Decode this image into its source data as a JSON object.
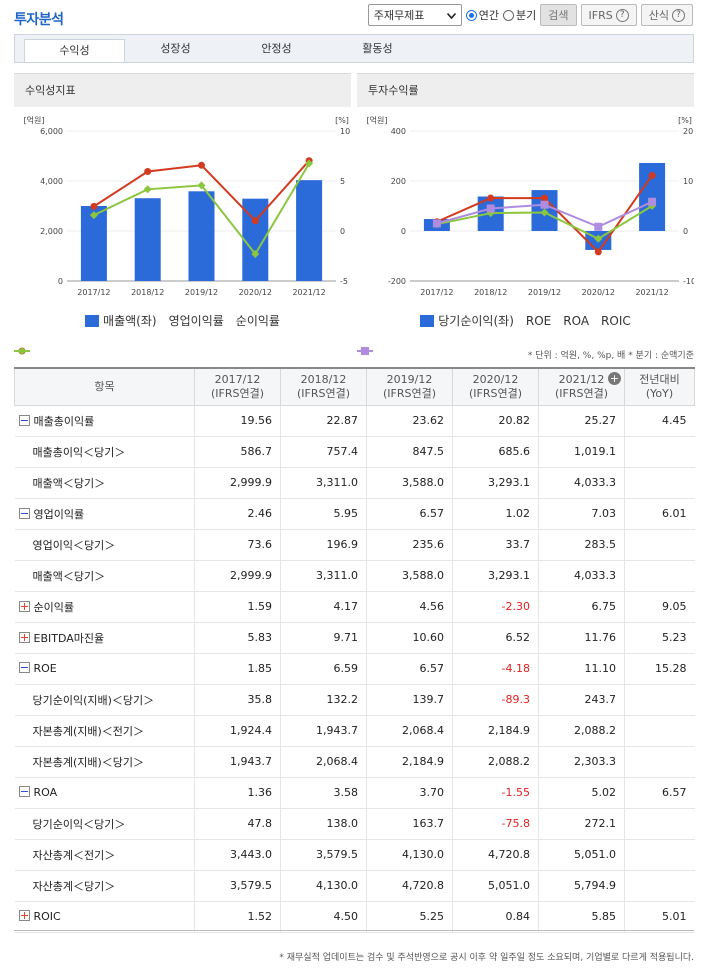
{
  "header": {
    "title": "투자분석",
    "select_value": "주재무제표",
    "radio_annual": "연간",
    "radio_quarter": "분기",
    "search_label": "검색",
    "ifrs_label": "IFRS",
    "formula_label": "산식",
    "help_glyph": "?"
  },
  "tabs": [
    {
      "label": "수익성"
    },
    {
      "label": "성장성"
    },
    {
      "label": "안정성"
    },
    {
      "label": "활동성"
    }
  ],
  "charts": {
    "left_title": "수익성지표",
    "right_title": "투자수익률"
  },
  "chart_data": [
    {
      "type": "bar+line",
      "title": "수익성지표",
      "categories": [
        "2017/12",
        "2018/12",
        "2019/12",
        "2020/12",
        "2021/12"
      ],
      "left_unit": "[억원]",
      "right_unit": "[%]",
      "left_ticks": [
        "6,000",
        "4,000",
        "2,000",
        "0"
      ],
      "right_ticks": [
        "10",
        "5",
        "0",
        "-5"
      ],
      "left_ylim": [
        0,
        6000
      ],
      "right_ylim": [
        -5,
        10
      ],
      "series": [
        {
          "name": "매출액(좌)",
          "kind": "bar",
          "axis": "left",
          "color": "#2a6ad9",
          "values": [
            2999.9,
            3311.0,
            3588.0,
            3293.1,
            4033.3
          ]
        },
        {
          "name": "영업이익률",
          "kind": "line",
          "axis": "right",
          "color": "#d33a1f",
          "values": [
            2.46,
            5.95,
            6.57,
            1.02,
            7.03
          ]
        },
        {
          "name": "순이익률",
          "kind": "line",
          "axis": "right",
          "color": "#8cc63f",
          "values": [
            1.59,
            4.17,
            4.56,
            -2.3,
            6.75
          ]
        }
      ]
    },
    {
      "type": "bar+line",
      "title": "투자수익률",
      "categories": [
        "2017/12",
        "2018/12",
        "2019/12",
        "2020/12",
        "2021/12"
      ],
      "left_unit": "[억원]",
      "right_unit": "[%]",
      "left_ticks": [
        "400",
        "200",
        "0",
        "-200"
      ],
      "right_ticks": [
        "20",
        "10",
        "0",
        "-10"
      ],
      "left_ylim": [
        -200,
        400
      ],
      "right_ylim": [
        -10,
        20
      ],
      "series": [
        {
          "name": "당기순이익(좌)",
          "kind": "bar",
          "axis": "left",
          "color": "#2a6ad9",
          "values": [
            47.8,
            138.0,
            163.7,
            -75.8,
            272.1
          ]
        },
        {
          "name": "ROE",
          "kind": "line",
          "axis": "right",
          "color": "#d33a1f",
          "values": [
            1.85,
            6.59,
            6.57,
            -4.18,
            11.1
          ]
        },
        {
          "name": "ROA",
          "kind": "line",
          "axis": "right",
          "color": "#8cc63f",
          "values": [
            1.36,
            3.58,
            3.7,
            -1.55,
            5.02
          ]
        },
        {
          "name": "ROIC",
          "kind": "line",
          "axis": "right",
          "color": "#b08ce0",
          "values": [
            1.52,
            4.5,
            5.25,
            0.84,
            5.85
          ]
        }
      ]
    }
  ],
  "units_note": "* 단위 : 억원, %, %p, 배   * 분기 : 순액기준",
  "table": {
    "header": {
      "item": "항목",
      "cols": [
        {
          "year": "2017/12",
          "basis": "(IFRS연결)"
        },
        {
          "year": "2018/12",
          "basis": "(IFRS연결)"
        },
        {
          "year": "2019/12",
          "basis": "(IFRS연결)"
        },
        {
          "year": "2020/12",
          "basis": "(IFRS연결)"
        },
        {
          "year": "2021/12",
          "basis": "(IFRS연결)"
        }
      ],
      "yoy": "전년대비",
      "yoy2": "(YoY)",
      "plus_glyph": "+"
    },
    "rows": [
      {
        "label": "매출총이익률",
        "kind": "main",
        "toggle": "minus",
        "values": [
          "19.56",
          "22.87",
          "23.62",
          "20.82",
          "25.27"
        ],
        "yoy": "4.45"
      },
      {
        "label": "매출총이익＜당기＞",
        "kind": "sub",
        "values": [
          "586.7",
          "757.4",
          "847.5",
          "685.6",
          "1,019.1"
        ],
        "yoy": ""
      },
      {
        "label": "매출액＜당기＞",
        "kind": "sub",
        "values": [
          "2,999.9",
          "3,311.0",
          "3,588.0",
          "3,293.1",
          "4,033.3"
        ],
        "yoy": ""
      },
      {
        "label": "영업이익률",
        "kind": "main",
        "toggle": "minus",
        "values": [
          "2.46",
          "5.95",
          "6.57",
          "1.02",
          "7.03"
        ],
        "yoy": "6.01"
      },
      {
        "label": "영업이익＜당기＞",
        "kind": "sub",
        "values": [
          "73.6",
          "196.9",
          "235.6",
          "33.7",
          "283.5"
        ],
        "yoy": ""
      },
      {
        "label": "매출액＜당기＞",
        "kind": "sub",
        "values": [
          "2,999.9",
          "3,311.0",
          "3,588.0",
          "3,293.1",
          "4,033.3"
        ],
        "yoy": ""
      },
      {
        "label": "순이익률",
        "kind": "main",
        "toggle": "plus",
        "values": [
          "1.59",
          "4.17",
          "4.56",
          "-2.30",
          "6.75"
        ],
        "yoy": "9.05"
      },
      {
        "label": "EBITDA마진율",
        "kind": "main",
        "toggle": "plus",
        "values": [
          "5.83",
          "9.71",
          "10.60",
          "6.52",
          "11.76"
        ],
        "yoy": "5.23"
      },
      {
        "label": "ROE",
        "kind": "main",
        "toggle": "minus",
        "values": [
          "1.85",
          "6.59",
          "6.57",
          "-4.18",
          "11.10"
        ],
        "yoy": "15.28"
      },
      {
        "label": "당기순이익(지배)＜당기＞",
        "kind": "sub",
        "values": [
          "35.8",
          "132.2",
          "139.7",
          "-89.3",
          "243.7"
        ],
        "yoy": ""
      },
      {
        "label": "자본총계(지배)＜전기＞",
        "kind": "sub",
        "values": [
          "1,924.4",
          "1,943.7",
          "2,068.4",
          "2,184.9",
          "2,088.2"
        ],
        "yoy": ""
      },
      {
        "label": "자본총계(지배)＜당기＞",
        "kind": "sub",
        "values": [
          "1,943.7",
          "2,068.4",
          "2,184.9",
          "2,088.2",
          "2,303.3"
        ],
        "yoy": ""
      },
      {
        "label": "ROA",
        "kind": "main",
        "toggle": "minus",
        "values": [
          "1.36",
          "3.58",
          "3.70",
          "-1.55",
          "5.02"
        ],
        "yoy": "6.57"
      },
      {
        "label": "당기순이익＜당기＞",
        "kind": "sub",
        "values": [
          "47.8",
          "138.0",
          "163.7",
          "-75.8",
          "272.1"
        ],
        "yoy": ""
      },
      {
        "label": "자산총계＜전기＞",
        "kind": "sub",
        "values": [
          "3,443.0",
          "3,579.5",
          "4,130.0",
          "4,720.8",
          "5,051.0"
        ],
        "yoy": ""
      },
      {
        "label": "자산총계＜당기＞",
        "kind": "sub",
        "values": [
          "3,579.5",
          "4,130.0",
          "4,720.8",
          "5,051.0",
          "5,794.9"
        ],
        "yoy": ""
      },
      {
        "label": "ROIC",
        "kind": "main",
        "toggle": "plus",
        "values": [
          "1.52",
          "4.50",
          "5.25",
          "0.84",
          "5.85"
        ],
        "yoy": "5.01"
      }
    ]
  },
  "footer_note": "* 재무실적 업데이트는 검수 및 주석반영으로 공시 이후 약 일주일 정도 소요되며, 기업별로 다르게 적용됩니다."
}
